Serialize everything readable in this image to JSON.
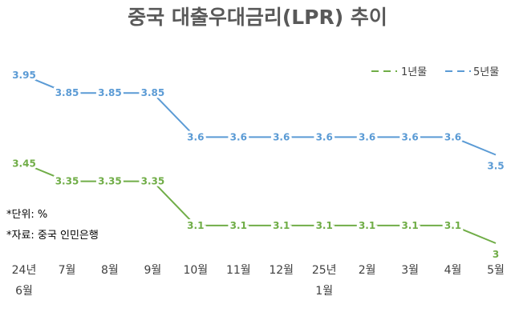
{
  "chart_data": {
    "type": "line",
    "title": "중국 대출우대금리(LPR) 추이",
    "categories": [
      [
        "24년",
        "6월"
      ],
      [
        "7월"
      ],
      [
        "8월"
      ],
      [
        "9월"
      ],
      [
        "10월"
      ],
      [
        "11월"
      ],
      [
        "12월"
      ],
      [
        "25년",
        "1월"
      ],
      [
        "2월"
      ],
      [
        "3월"
      ],
      [
        "4월"
      ],
      [
        "5월"
      ]
    ],
    "series": [
      {
        "name": "1년물",
        "color": "#70AD47",
        "values": [
          3.45,
          3.35,
          3.35,
          3.35,
          3.1,
          3.1,
          3.1,
          3.1,
          3.1,
          3.1,
          3.1,
          3.0
        ],
        "labels": [
          "3.45",
          "3.35",
          "3.35",
          "3.35",
          "3.1",
          "3.1",
          "3.1",
          "3.1",
          "3.1",
          "3.1",
          "3.1",
          "3"
        ]
      },
      {
        "name": "5년물",
        "color": "#5B9BD5",
        "values": [
          3.95,
          3.85,
          3.85,
          3.85,
          3.6,
          3.6,
          3.6,
          3.6,
          3.6,
          3.6,
          3.6,
          3.5
        ],
        "labels": [
          "3.95",
          "3.85",
          "3.85",
          "3.85",
          "3.6",
          "3.6",
          "3.6",
          "3.6",
          "3.6",
          "3.6",
          "3.6",
          "3.5"
        ]
      }
    ],
    "ylim": [
      2.95,
      4.05
    ],
    "grid": false,
    "legend": "top-right",
    "notes": [
      "*단위: %",
      "*자료: 중국 인민은행"
    ]
  }
}
